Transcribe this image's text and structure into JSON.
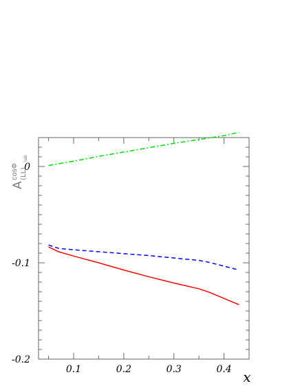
{
  "chart_data": {
    "type": "line",
    "xlabel": "x",
    "ylabel": {
      "main": "A",
      "superscript": "cosΦ",
      "subscript": "(LL)",
      "subsubscript": "lab"
    },
    "xlim": [
      0.03,
      0.45
    ],
    "ylim": [
      -0.2,
      0.03
    ],
    "x_ticks": [
      0.1,
      0.2,
      0.3,
      0.4
    ],
    "x_tick_labels": [
      "0.1",
      "0.2",
      "0.3",
      "0.4"
    ],
    "y_ticks": [
      0,
      -0.1,
      -0.2
    ],
    "y_tick_labels": [
      "0",
      "-0.1",
      "-0.2"
    ],
    "grid": false,
    "series": [
      {
        "color": "#ff0000",
        "style": "solid",
        "x": [
          0.05,
          0.07,
          0.1,
          0.15,
          0.2,
          0.25,
          0.3,
          0.35,
          0.37,
          0.4,
          0.43
        ],
        "y": [
          -0.0835,
          -0.0885,
          -0.093,
          -0.1,
          -0.1075,
          -0.1145,
          -0.121,
          -0.127,
          -0.1305,
          -0.137,
          -0.1435
        ]
      },
      {
        "color": "#0000ff",
        "style": "dashed",
        "x": [
          0.05,
          0.07,
          0.1,
          0.15,
          0.2,
          0.25,
          0.3,
          0.35,
          0.37,
          0.4,
          0.43
        ],
        "y": [
          -0.0815,
          -0.085,
          -0.0865,
          -0.0885,
          -0.0905,
          -0.0925,
          -0.095,
          -0.0975,
          -0.0995,
          -0.1035,
          -0.1075
        ]
      },
      {
        "color": "#00dd00",
        "style": "dashdot",
        "x": [
          0.05,
          0.1,
          0.15,
          0.2,
          0.25,
          0.3,
          0.35,
          0.4,
          0.43
        ],
        "y": [
          0.001,
          0.0055,
          0.0105,
          0.015,
          0.0195,
          0.024,
          0.028,
          0.032,
          0.0355
        ]
      }
    ]
  }
}
